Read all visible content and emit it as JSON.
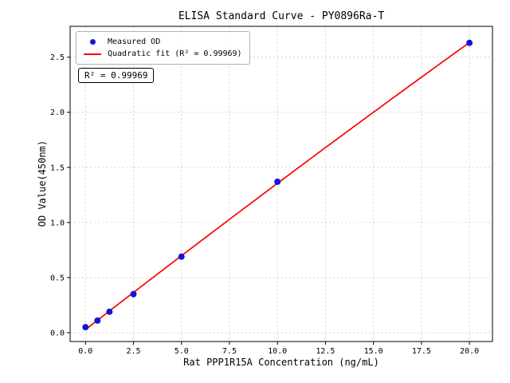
{
  "chart_data": {
    "type": "scatter",
    "title": "ELISA Standard Curve - PY0896Ra-T",
    "xlabel": "Rat PPP1R15A Concentration (ng/mL)",
    "ylabel": "OD Value(450nm)",
    "x": [
      0,
      0.625,
      1.25,
      2.5,
      5,
      10,
      20
    ],
    "y": [
      0.05,
      0.11,
      0.19,
      0.35,
      0.69,
      1.37,
      2.63
    ],
    "series": [
      {
        "name": "Measured OD",
        "type": "scatter",
        "marker": "circle",
        "color": "#1414d6"
      },
      {
        "name": "Quadratic fit (R² = 0.99969)",
        "type": "line",
        "color": "#fe0000"
      }
    ],
    "fit": {
      "kind": "quadratic",
      "r_squared": 0.99969
    },
    "annotation": "R² = 0.99969",
    "xticks": [
      0,
      2.5,
      5,
      7.5,
      10,
      12.5,
      15,
      17.5,
      20
    ],
    "yticks": [
      0,
      0.5,
      1,
      1.5,
      2,
      2.5
    ],
    "xlim": [
      -0.8,
      21.2
    ],
    "ylim": [
      -0.08,
      2.78
    ],
    "grid": true,
    "legend_position": "upper left"
  }
}
